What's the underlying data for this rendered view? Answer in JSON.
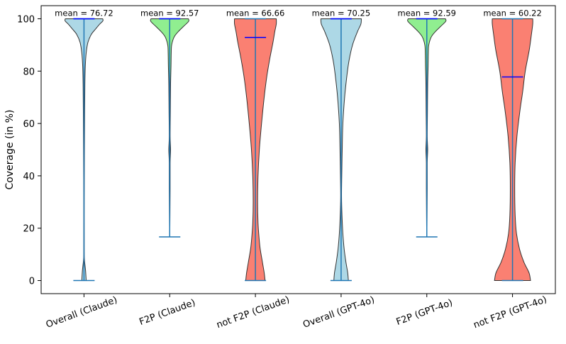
{
  "chart_data": {
    "type": "violin",
    "title": "",
    "xlabel": "",
    "ylabel": "Coverage (in %)",
    "ylim": [
      -5,
      105
    ],
    "yticks": [
      0,
      20,
      40,
      60,
      80,
      100
    ],
    "grid": false,
    "mean_label_prefix": "mean = ",
    "colors": {
      "outline": "#333333",
      "whisker": "#1f77b4",
      "median": "#0000ff",
      "axis": "#000000"
    },
    "series": [
      {
        "name": "Overall (Claude)",
        "mean": 76.72,
        "mean_label": "76.72",
        "min": 0,
        "max": 100,
        "median": 100,
        "fill": "#add8e6",
        "density": [
          [
            0,
            0.1
          ],
          [
            4,
            0.07
          ],
          [
            8,
            0.02
          ],
          [
            12,
            0.01
          ],
          [
            30,
            0.01
          ],
          [
            50,
            0.02
          ],
          [
            65,
            0.03
          ],
          [
            75,
            0.04
          ],
          [
            82,
            0.06
          ],
          [
            87,
            0.1
          ],
          [
            91,
            0.18
          ],
          [
            94,
            0.33
          ],
          [
            96,
            0.52
          ],
          [
            98,
            0.72
          ],
          [
            99.2,
            0.86
          ],
          [
            100,
            0.85
          ]
        ]
      },
      {
        "name": "F2P (Claude)",
        "mean": 92.57,
        "mean_label": "92.57",
        "min": 16.67,
        "max": 100,
        "median": 100,
        "fill": "#90ee90",
        "density": [
          [
            16.67,
            0.005
          ],
          [
            35,
            0.02
          ],
          [
            45,
            0.02
          ],
          [
            50,
            0.04
          ],
          [
            55,
            0.02
          ],
          [
            65,
            0.03
          ],
          [
            75,
            0.04
          ],
          [
            82,
            0.06
          ],
          [
            87,
            0.07
          ],
          [
            90,
            0.09
          ],
          [
            93,
            0.2
          ],
          [
            95,
            0.38
          ],
          [
            97,
            0.62
          ],
          [
            99,
            0.86
          ],
          [
            100,
            0.85
          ]
        ]
      },
      {
        "name": "not F2P (Claude)",
        "mean": 66.66,
        "mean_label": "66.66",
        "min": 0,
        "max": 100,
        "median": 92.86,
        "fill": "#fa8072",
        "density": [
          [
            0,
            0.44
          ],
          [
            3,
            0.4
          ],
          [
            7,
            0.32
          ],
          [
            12,
            0.22
          ],
          [
            16,
            0.17
          ],
          [
            22,
            0.12
          ],
          [
            30,
            0.1
          ],
          [
            40,
            0.12
          ],
          [
            50,
            0.18
          ],
          [
            60,
            0.28
          ],
          [
            70,
            0.4
          ],
          [
            78,
            0.52
          ],
          [
            85,
            0.66
          ],
          [
            91,
            0.8
          ],
          [
            95,
            0.88
          ],
          [
            98,
            0.95
          ],
          [
            100,
            0.95
          ]
        ]
      },
      {
        "name": "Overall (GPT-4o)",
        "mean": 70.25,
        "mean_label": "70.25",
        "min": 0,
        "max": 100,
        "median": 100,
        "fill": "#add8e6",
        "density": [
          [
            0,
            0.33
          ],
          [
            3,
            0.3
          ],
          [
            7,
            0.22
          ],
          [
            12,
            0.14
          ],
          [
            18,
            0.08
          ],
          [
            25,
            0.04
          ],
          [
            32,
            0.02
          ],
          [
            40,
            0.03
          ],
          [
            50,
            0.05
          ],
          [
            60,
            0.08
          ],
          [
            70,
            0.16
          ],
          [
            78,
            0.26
          ],
          [
            84,
            0.36
          ],
          [
            90,
            0.52
          ],
          [
            95,
            0.74
          ],
          [
            98,
            0.9
          ],
          [
            100,
            0.92
          ]
        ]
      },
      {
        "name": "F2P (GPT-4o)",
        "mean": 92.59,
        "mean_label": "92.59",
        "min": 16.67,
        "max": 100,
        "median": 100,
        "fill": "#90ee90",
        "density": [
          [
            16.67,
            0.005
          ],
          [
            35,
            0.02
          ],
          [
            45,
            0.02
          ],
          [
            50,
            0.04
          ],
          [
            55,
            0.02
          ],
          [
            65,
            0.03
          ],
          [
            75,
            0.04
          ],
          [
            82,
            0.06
          ],
          [
            87,
            0.07
          ],
          [
            90,
            0.09
          ],
          [
            93,
            0.2
          ],
          [
            95,
            0.38
          ],
          [
            97,
            0.62
          ],
          [
            99,
            0.86
          ],
          [
            100,
            0.85
          ]
        ]
      },
      {
        "name": "not F2P (GPT-4o)",
        "mean": 60.22,
        "mean_label": "60.22",
        "min": 0,
        "max": 100,
        "median": 77.78,
        "fill": "#fa8072",
        "density": [
          [
            0,
            0.82
          ],
          [
            3,
            0.75
          ],
          [
            7,
            0.52
          ],
          [
            12,
            0.32
          ],
          [
            18,
            0.18
          ],
          [
            25,
            0.12
          ],
          [
            35,
            0.1
          ],
          [
            45,
            0.12
          ],
          [
            55,
            0.2
          ],
          [
            65,
            0.34
          ],
          [
            72,
            0.46
          ],
          [
            80,
            0.58
          ],
          [
            88,
            0.76
          ],
          [
            94,
            0.86
          ],
          [
            98,
            0.92
          ],
          [
            100,
            0.92
          ]
        ]
      }
    ]
  }
}
